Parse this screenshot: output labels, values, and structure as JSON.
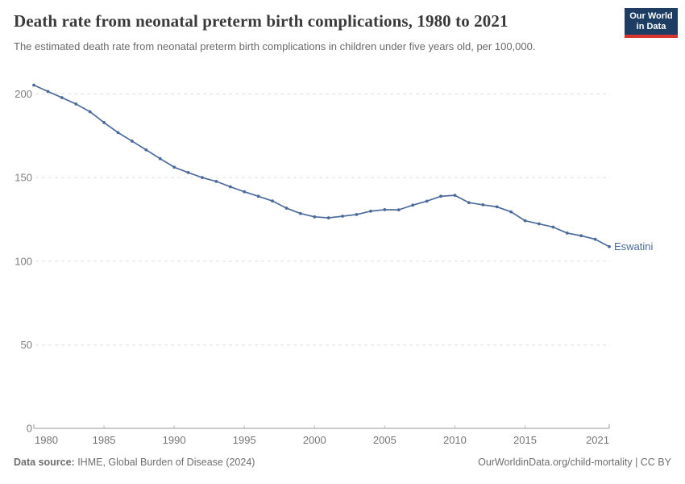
{
  "header": {
    "title": "Death rate from neonatal preterm birth complications, 1980 to 2021",
    "subtitle": "The estimated death rate from neonatal preterm birth complications in children under five years old, per 100,000.",
    "logo": {
      "line1": "Our World",
      "line2": "in Data"
    }
  },
  "chart_data": {
    "type": "line",
    "title": "Death rate from neonatal preterm birth complications, 1980 to 2021",
    "entity": "Eswatini",
    "x": [
      1980,
      1981,
      1982,
      1983,
      1984,
      1985,
      1986,
      1987,
      1988,
      1989,
      1990,
      1991,
      1992,
      1993,
      1994,
      1995,
      1996,
      1997,
      1998,
      1999,
      2000,
      2001,
      2002,
      2003,
      2004,
      2005,
      2006,
      2007,
      2008,
      2009,
      2010,
      2011,
      2012,
      2013,
      2014,
      2015,
      2016,
      2017,
      2018,
      2019,
      2020,
      2021
    ],
    "series": [
      {
        "name": "Eswatini",
        "values": [
          205.3,
          201.5,
          197.8,
          194.0,
          189.4,
          182.9,
          176.9,
          171.8,
          166.6,
          161.3,
          156.2,
          153.0,
          150.0,
          147.7,
          144.5,
          141.5,
          138.8,
          136.0,
          131.7,
          128.5,
          126.5,
          125.9,
          126.9,
          127.9,
          129.9,
          130.8,
          130.7,
          133.5,
          135.9,
          138.8,
          139.4,
          135.0,
          133.7,
          132.5,
          129.5,
          124.2,
          122.3,
          120.4,
          116.8,
          115.2,
          113.1,
          108.7
        ]
      }
    ],
    "xticks": [
      1980,
      1985,
      1990,
      1995,
      2000,
      2005,
      2010,
      2015,
      2021
    ],
    "yticks": [
      0,
      50,
      100,
      150,
      200
    ],
    "xlim": [
      1980,
      2021
    ],
    "ylim": [
      0,
      209
    ],
    "grid": true,
    "legend_position": "end-of-line",
    "line_color": "#4C6A9C",
    "gridline_color": "#e0e0e0",
    "axis_color": "#9a9a9a",
    "tick_label_color": "#7d7d7d"
  },
  "footer": {
    "source_label": "Data source:",
    "source_text": " IHME, Global Burden of Disease (2024)",
    "credit": "OurWorldinData.org/child-mortality | CC BY"
  }
}
